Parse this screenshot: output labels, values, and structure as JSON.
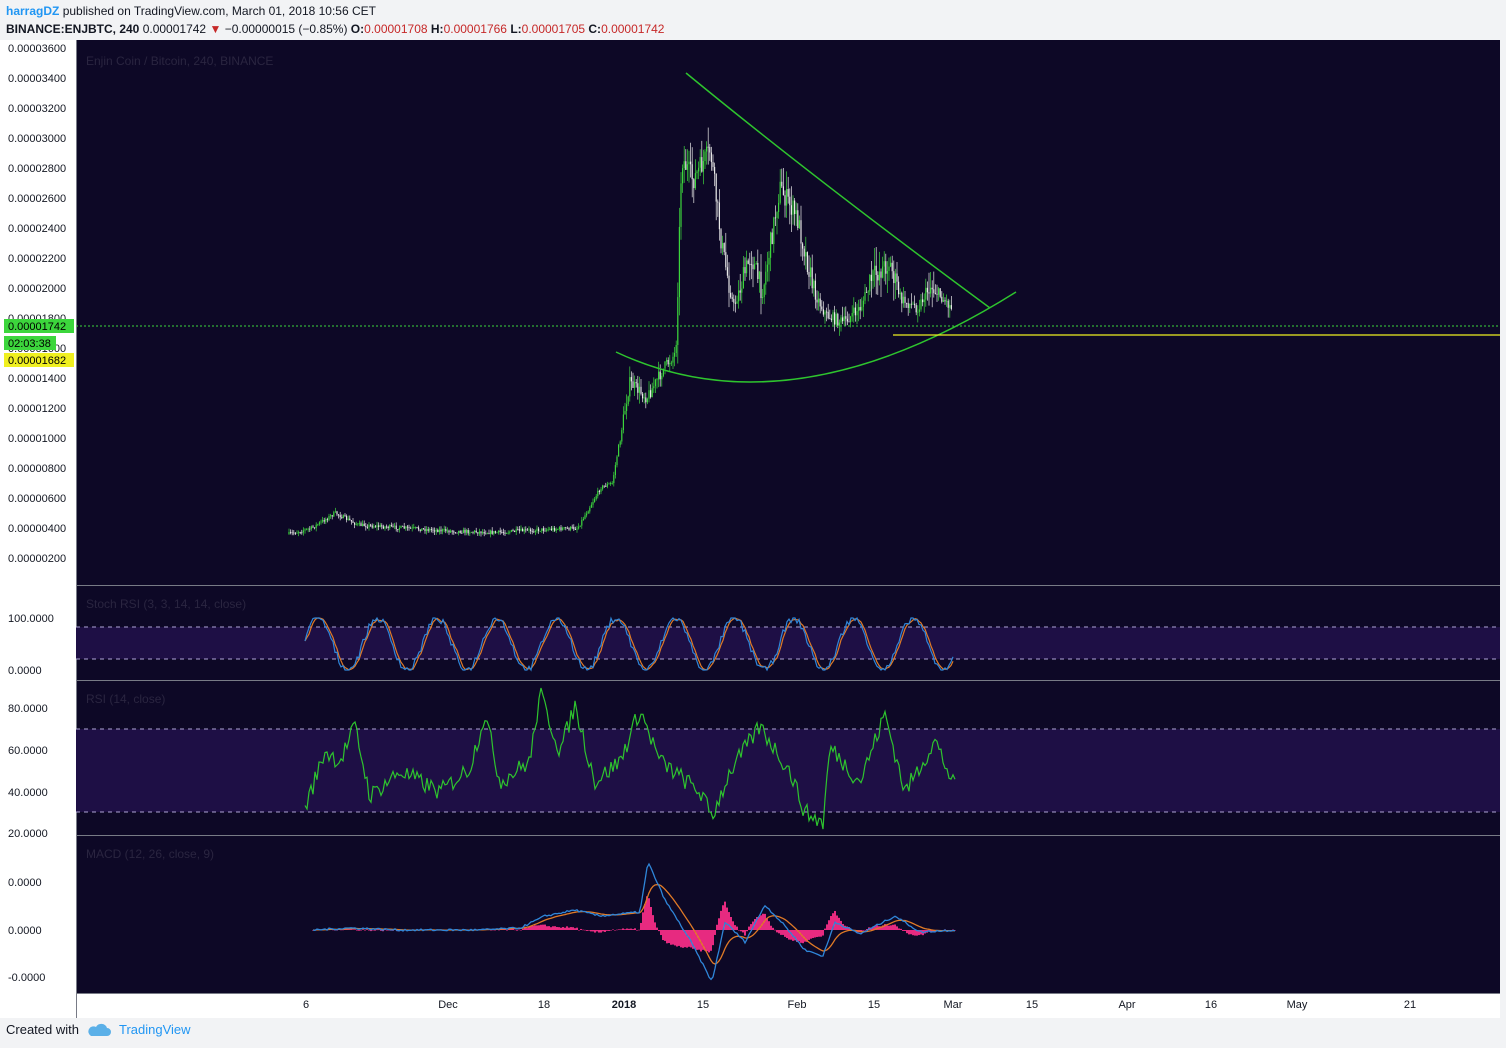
{
  "header": {
    "author": "harragDZ",
    "published": "published on TradingView.com, March 01, 2018 10:56 CET",
    "symbol": "BINANCE:ENJBTC, 240",
    "last": "0.00001742",
    "change": "−0.00000015 (−0.85%)",
    "o_label": "O:",
    "o": "0.00001708",
    "h_label": "H:",
    "h": "0.00001766",
    "l_label": "L:",
    "l": "0.00001705",
    "c_label": "C:",
    "c": "0.00001742"
  },
  "footer": {
    "created": "Created with",
    "brand": "TradingView"
  },
  "colors": {
    "background": "#0d0826",
    "panel_band": "#1e0f45",
    "axis_bg": "#ffffff",
    "up": "#3cd63c",
    "down": "#e8e8e8",
    "trendline": "#2ec42e",
    "support": "#f0f020",
    "stoch_k": "#2f86d9",
    "stoch_d": "#e07a26",
    "rsi": "#2ec42e",
    "macd": "#2f86d9",
    "signal": "#e07a26",
    "hist": "#ff2f8a"
  },
  "price_axis": {
    "ticks": [
      "0.00003600",
      "0.00003400",
      "0.00003200",
      "0.00003000",
      "0.00002800",
      "0.00002600",
      "0.00002400",
      "0.00002200",
      "0.00002000",
      "0.00001800",
      "0.00001600",
      "0.00001400",
      "0.00001200",
      "0.00001000",
      "0.00000800",
      "0.00000600",
      "0.00000400",
      "0.00000200"
    ],
    "last_price_label": "0.00001742",
    "countdown_label": "02:03:38",
    "support_label": "0.00001682"
  },
  "time_axis": {
    "labels": [
      "6",
      "Dec",
      "18",
      "2018",
      "15",
      "Feb",
      "15",
      "Mar",
      "15",
      "Apr",
      "16",
      "May",
      "21"
    ]
  },
  "chart_data": [
    {
      "type": "candlestick",
      "title": "Enjin Coin / Bitcoin, 240, BINANCE",
      "ylim": [
        8e-07,
        3.66e-05
      ],
      "x_range": [
        "Nov 06, 2017",
        "Mar 01, 2018"
      ],
      "last_price": 1.742e-05,
      "support_level": 1.682e-05,
      "path": [
        [
          "Nov 06",
          2.4e-06
        ],
        [
          "Nov 10",
          2.8e-06
        ],
        [
          "Nov 14",
          3.8e-06
        ],
        [
          "Nov 18",
          3e-06
        ],
        [
          "Nov 26",
          2.8e-06
        ],
        [
          "Dec 04",
          2.6e-06
        ],
        [
          "Dec 12",
          2.5e-06
        ],
        [
          "Dec 20",
          2.7e-06
        ],
        [
          "Dec 26",
          2.8e-06
        ],
        [
          "Dec 30",
          5.5e-06
        ],
        [
          "Jan 01",
          5.8e-06
        ],
        [
          "Jan 04",
          1.25e-05
        ],
        [
          "Jan 07",
          1.15e-05
        ],
        [
          "Jan 10",
          1.35e-05
        ],
        [
          "Jan 12",
          1.45e-05
        ],
        [
          "Jan 13",
          2.75e-05
        ],
        [
          "Jan 15",
          2.6e-05
        ],
        [
          "Jan 18",
          2.8e-05
        ],
        [
          "Jan 20",
          2.15e-05
        ],
        [
          "Jan 22",
          1.75e-05
        ],
        [
          "Jan 25",
          2.1e-05
        ],
        [
          "Jan 27",
          1.85e-05
        ],
        [
          "Jan 30",
          2.55e-05
        ],
        [
          "Feb 02",
          2.35e-05
        ],
        [
          "Feb 05",
          1.85e-05
        ],
        [
          "Feb 07",
          1.7e-05
        ],
        [
          "Feb 10",
          1.65e-05
        ],
        [
          "Feb 13",
          1.75e-05
        ],
        [
          "Feb 15",
          1.95e-05
        ],
        [
          "Feb 18",
          2.05e-05
        ],
        [
          "Feb 20",
          1.8e-05
        ],
        [
          "Feb 23",
          1.75e-05
        ],
        [
          "Feb 25",
          1.9e-05
        ],
        [
          "Mar 01",
          1.74e-05
        ]
      ]
    },
    {
      "type": "line",
      "title": "Stoch RSI (3, 3, 14, 14, close)",
      "ylim": [
        -2,
        120
      ],
      "ticks": [
        "100.0000",
        "0.0000"
      ],
      "bands": [
        80,
        20
      ]
    },
    {
      "type": "line",
      "title": "RSI (14, close)",
      "ylim": [
        18,
        90
      ],
      "ticks": [
        "80.0000",
        "60.0000",
        "40.0000",
        "20.0000"
      ],
      "bands": [
        70,
        30
      ]
    },
    {
      "type": "line",
      "title": "MACD (12, 26, close, 9)",
      "ticks": [
        "0.0000",
        "0.0000",
        "-0.0000"
      ]
    }
  ]
}
